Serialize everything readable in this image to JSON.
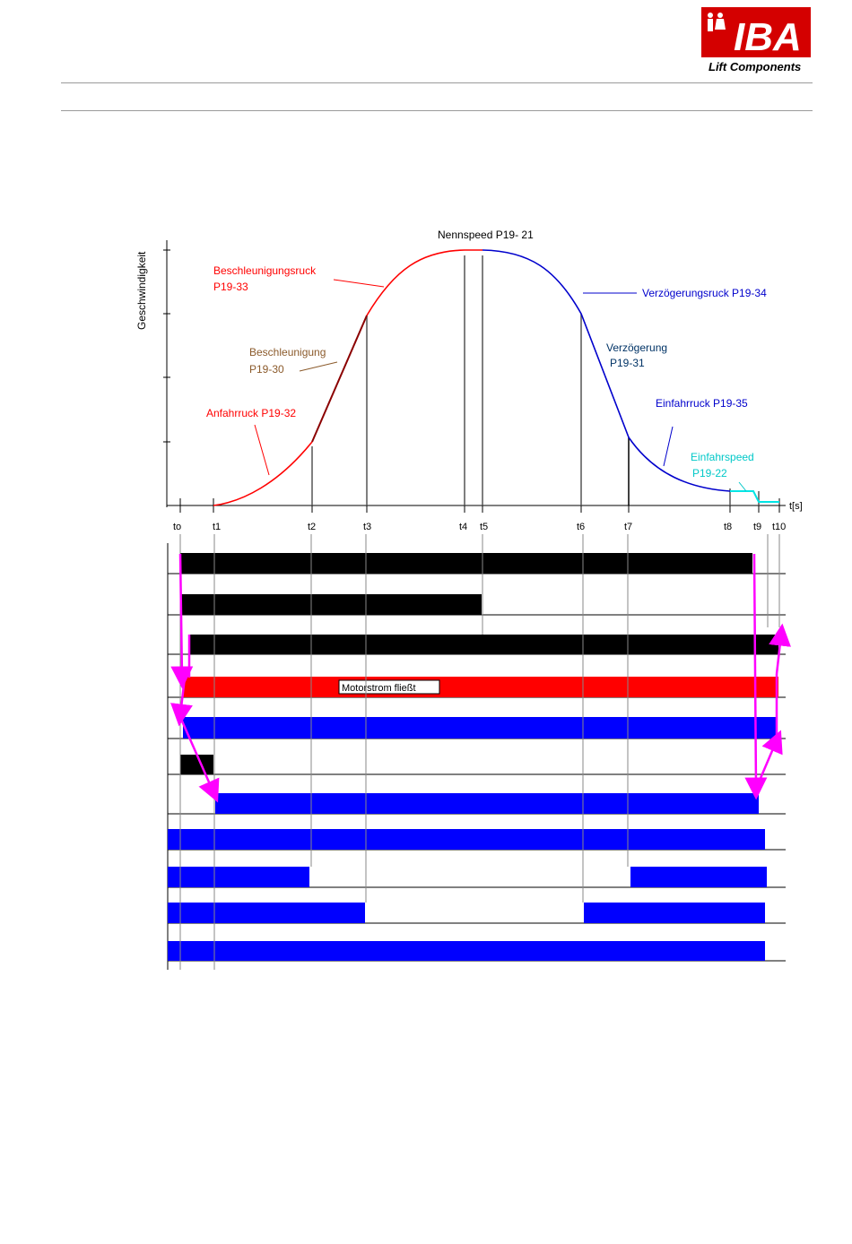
{
  "logo": {
    "brand_text": "IBA",
    "tagline": "Lift Components",
    "brand_color": "#d40000"
  },
  "diagram": {
    "y_axis_label": "Geschwindigkeit",
    "x_axis_label": "t[s]",
    "time_labels": [
      "to",
      "t1",
      "t2",
      "t3",
      "t4",
      "t5",
      "t6",
      "t7",
      "t8",
      "t9",
      "t10"
    ],
    "annotations": {
      "nennspeed": "Nennspeed P19- 21",
      "beschleunigungsruck_1": "Beschleunigungsruck",
      "beschleunigungsruck_2": "P19-33",
      "beschleunigung_1": "Beschleunigung",
      "beschleunigung_2": "P19-30",
      "anfahrruck": "Anfahrruck P19-32",
      "verzoegerungsruck": "Verzögerungsruck P19-34",
      "verzoegerung_1": "Verzögerung",
      "verzoegerung_2": "P19-31",
      "einfahrruck": "Einfahrruck P19-35",
      "einfahrspeed_1": "Einfahrspeed",
      "einfahrspeed_2": "P19-22"
    },
    "motorstrom_label": "Motorstrom fließt",
    "colors": {
      "acceleration": "#ff0000",
      "deceleration": "#0000cc",
      "creep": "#00e5e5",
      "bar_black": "#000000",
      "bar_red": "#ff0000",
      "bar_blue": "#0000ff",
      "arrow_magenta": "#ff00ff",
      "label_brown": "#8b5a2b",
      "label_navy": "#003366"
    }
  }
}
